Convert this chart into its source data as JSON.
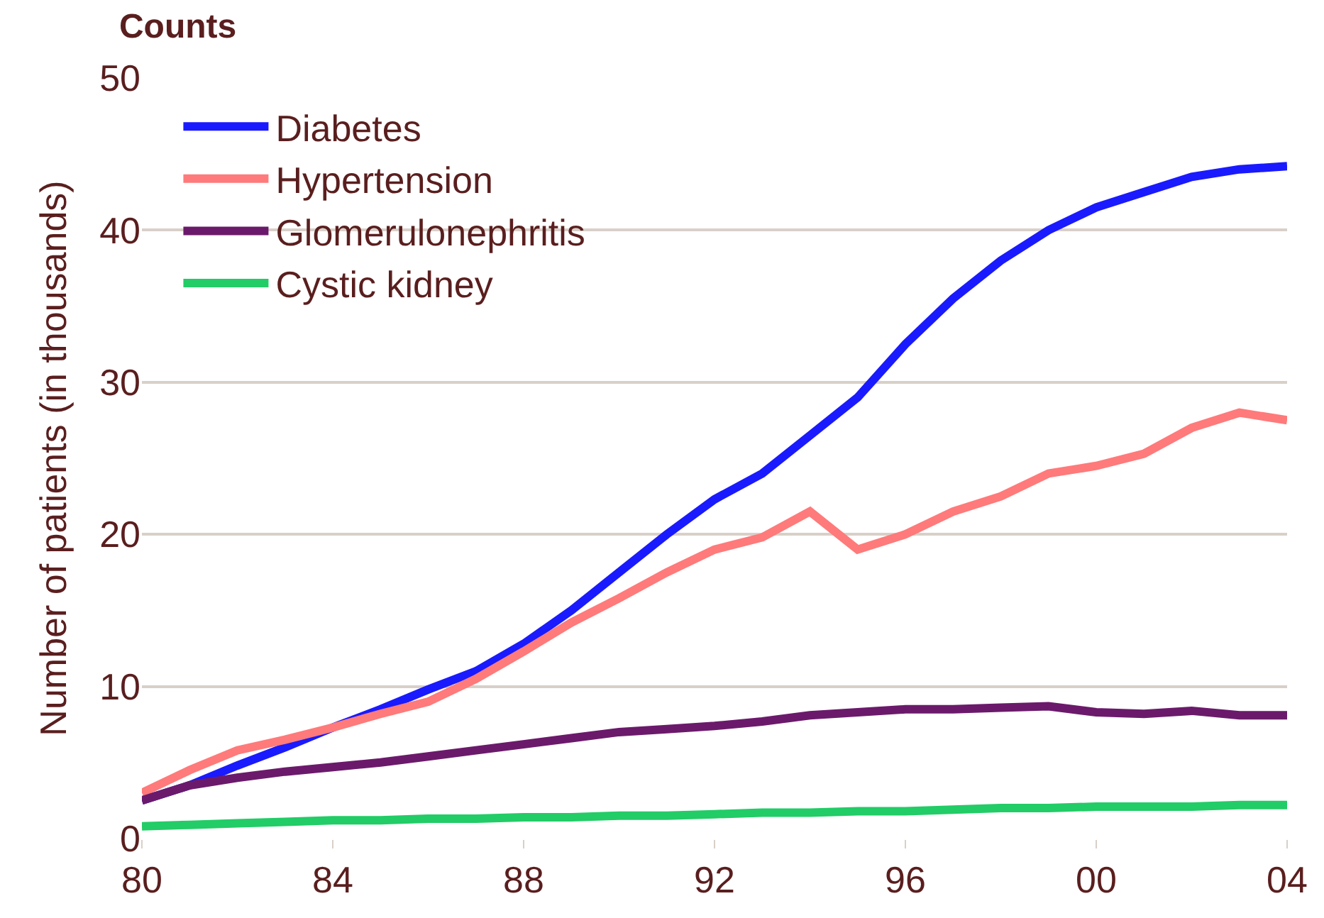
{
  "chart_data": {
    "type": "line",
    "title": "Counts",
    "ylabel": "Number of patients (in thousands)",
    "x": [
      1980,
      1981,
      1982,
      1983,
      1984,
      1985,
      1986,
      1987,
      1988,
      1989,
      1990,
      1991,
      1992,
      1993,
      1994,
      1995,
      1996,
      1997,
      1998,
      1999,
      2000,
      2001,
      2002,
      2003,
      2004
    ],
    "series": [
      {
        "name": "Diabetes",
        "color": "#1a1aff",
        "values": [
          2.5,
          3.5,
          4.8,
          6,
          7.3,
          8.5,
          9.8,
          11,
          12.8,
          15,
          17.5,
          20,
          22.3,
          24,
          26.5,
          29,
          32.5,
          35.5,
          38,
          40,
          41.5,
          42.5,
          43.5,
          44,
          44.2
        ]
      },
      {
        "name": "Hypertension",
        "color": "#ff7a7a",
        "values": [
          3,
          4.5,
          5.8,
          6.5,
          7.3,
          8.2,
          9,
          10.5,
          12.3,
          14.2,
          15.8,
          17.5,
          19,
          19.8,
          21.5,
          19,
          20,
          21.5,
          22.5,
          24,
          24.5,
          25.3,
          27,
          28,
          27.5
        ]
      },
      {
        "name": "Glomerulonephritis",
        "color": "#6b1a6b",
        "values": [
          2.5,
          3.5,
          4,
          4.4,
          4.7,
          5,
          5.4,
          5.8,
          6.2,
          6.6,
          7,
          7.2,
          7.4,
          7.7,
          8.1,
          8.3,
          8.5,
          8.5,
          8.6,
          8.7,
          8.3,
          8.2,
          8.4,
          8.1,
          8.1
        ]
      },
      {
        "name": "Cystic kidney",
        "color": "#22cc66",
        "values": [
          0.8,
          0.9,
          1,
          1.1,
          1.2,
          1.2,
          1.3,
          1.3,
          1.4,
          1.4,
          1.5,
          1.5,
          1.6,
          1.7,
          1.7,
          1.8,
          1.8,
          1.9,
          2,
          2,
          2.1,
          2.1,
          2.1,
          2.2,
          2.2
        ]
      }
    ],
    "xlim": [
      1980,
      2004
    ],
    "xticks": [
      {
        "value": 1980,
        "label": "80"
      },
      {
        "value": 1984,
        "label": "84"
      },
      {
        "value": 1988,
        "label": "88"
      },
      {
        "value": 1992,
        "label": "92"
      },
      {
        "value": 1996,
        "label": "96"
      },
      {
        "value": 2000,
        "label": "00"
      },
      {
        "value": 2004,
        "label": "04"
      }
    ],
    "ylim": [
      0,
      50
    ],
    "yticks": [
      0,
      10,
      20,
      30,
      40,
      50
    ],
    "grid": "y",
    "legend": "top left",
    "marker": "none",
    "line_style": "solid"
  }
}
